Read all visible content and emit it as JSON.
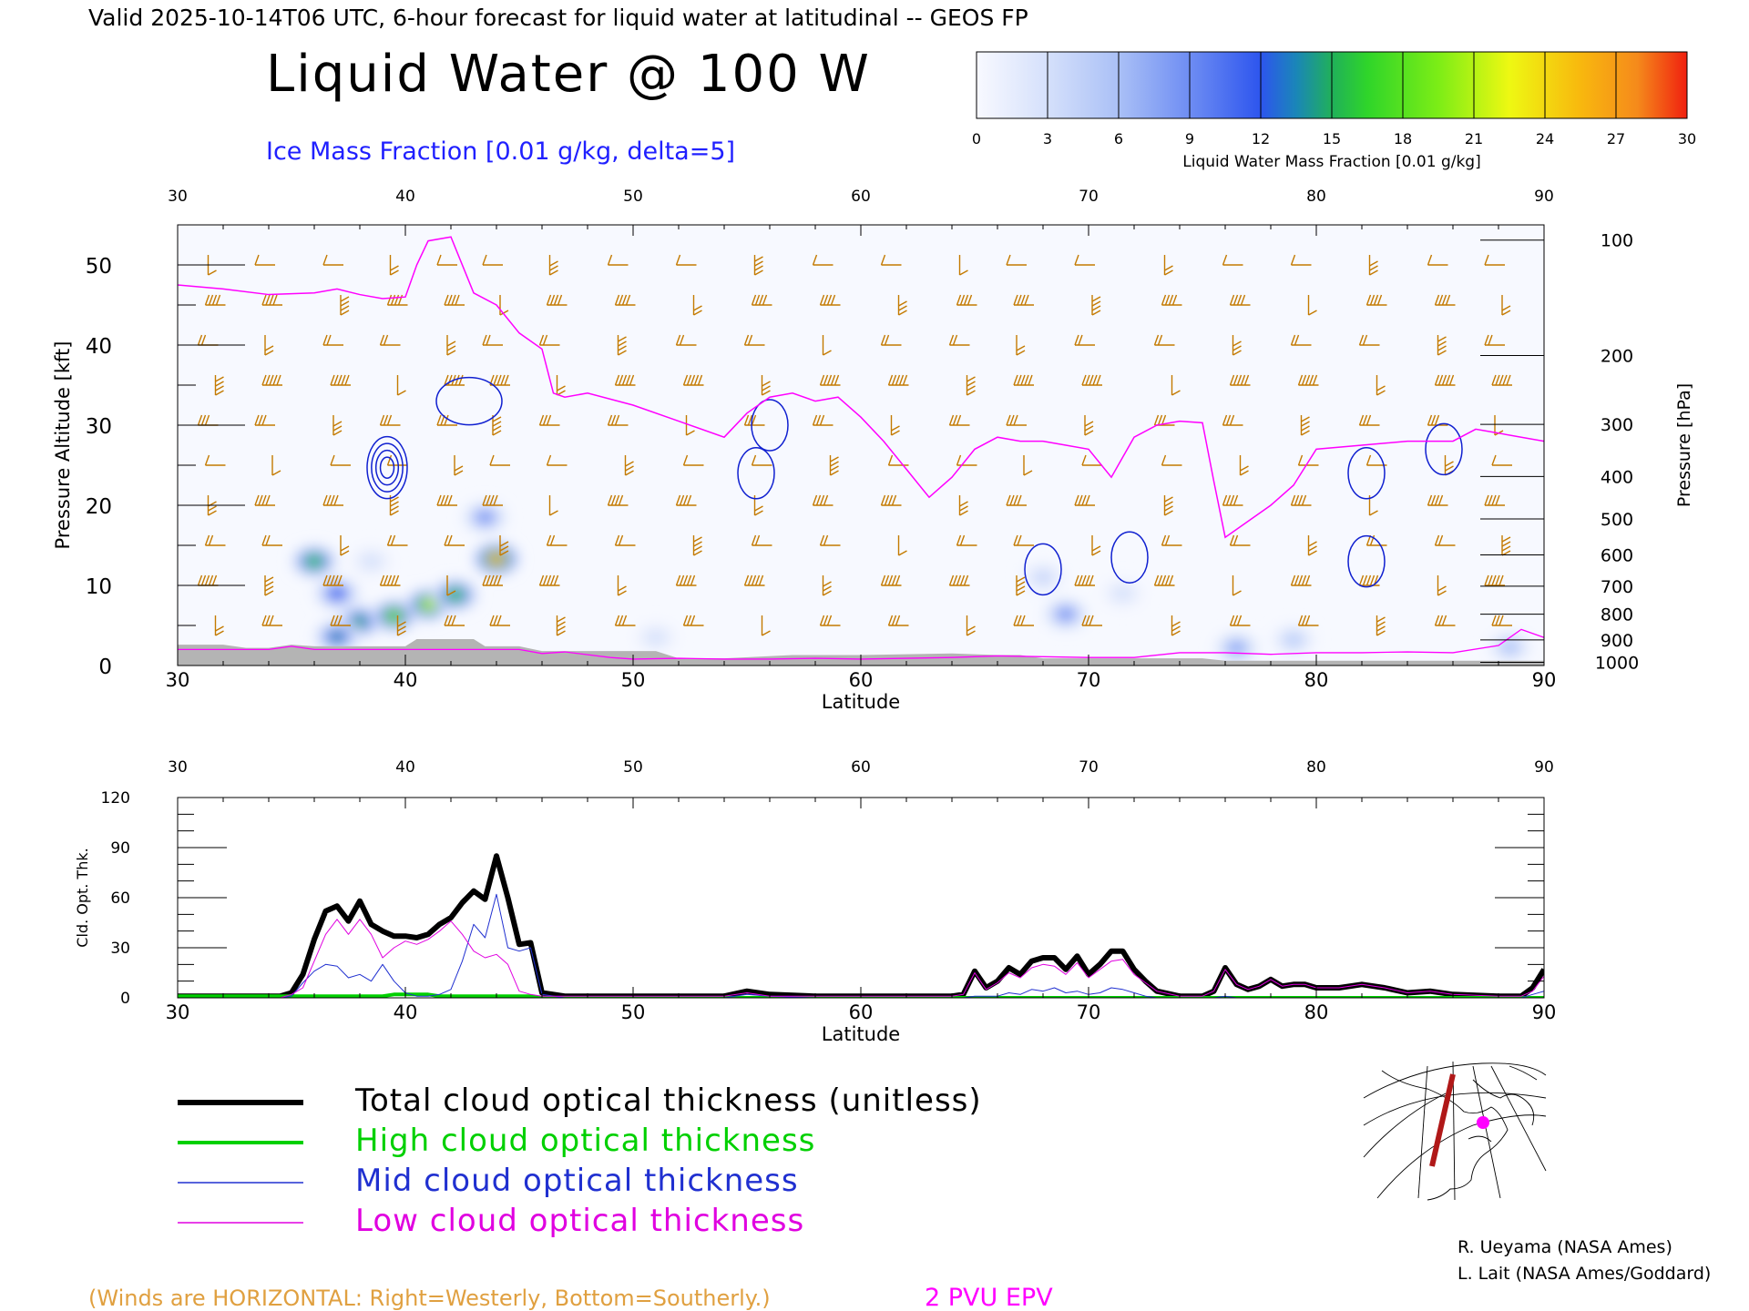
{
  "header": {
    "valid_line": "Valid 2025-10-14T06 UTC, 6-hour forecast for liquid water at latitudinal -- GEOS FP",
    "title": "Liquid Water @ 100 W",
    "ice_line": "Ice Mass Fraction [0.01 g/kg, delta=5]"
  },
  "colorbar": {
    "ticks": [
      "0",
      "3",
      "6",
      "9",
      "12",
      "15",
      "18",
      "21",
      "24",
      "27",
      "30"
    ],
    "label": "Liquid Water Mass Fraction [0.01 g/kg]",
    "colors": [
      "#f6f8ff",
      "#cfdcfb",
      "#aac2f7",
      "#8ea6f5",
      "#3f63ee",
      "#1fa0a6",
      "#2fd02a",
      "#77ea18",
      "#e8f614",
      "#f8c10e",
      "#f5911a",
      "#f02b10"
    ]
  },
  "chart_data": [
    {
      "type": "heatmap",
      "title": "Liquid Water @ 100 W",
      "xlabel": "Latitude",
      "ylabel": "Pressure Altitude [kft]",
      "y2label": "Pressure [hPa]",
      "xlim": [
        30,
        90
      ],
      "ylim": [
        0,
        55
      ],
      "x_ticks": [
        "30",
        "40",
        "50",
        "60",
        "70",
        "80",
        "90"
      ],
      "y_ticks": [
        "0",
        "10",
        "20",
        "30",
        "40",
        "50"
      ],
      "pressure_ticks": [
        "100",
        "200",
        "300",
        "400",
        "500",
        "600",
        "700",
        "800",
        "900",
        "1000"
      ],
      "pressure_tick_kft": [
        53.1,
        38.7,
        30.1,
        23.6,
        18.3,
        13.8,
        9.9,
        6.4,
        3.2,
        0.4
      ],
      "liquid_water_blobs": [
        {
          "lat": 36.0,
          "kft": 13.0,
          "value": 18
        },
        {
          "lat": 37.0,
          "kft": 9.0,
          "value": 12
        },
        {
          "lat": 38.0,
          "kft": 5.5,
          "value": 16
        },
        {
          "lat": 37.0,
          "kft": 3.6,
          "value": 14
        },
        {
          "lat": 39.5,
          "kft": 6.2,
          "value": 20
        },
        {
          "lat": 41.0,
          "kft": 7.6,
          "value": 22
        },
        {
          "lat": 42.2,
          "kft": 8.8,
          "value": 18
        },
        {
          "lat": 44.0,
          "kft": 13.3,
          "value": 28
        },
        {
          "lat": 43.5,
          "kft": 18.5,
          "value": 9
        },
        {
          "lat": 38.5,
          "kft": 13.0,
          "value": 3
        },
        {
          "lat": 69.0,
          "kft": 6.4,
          "value": 9
        },
        {
          "lat": 68.0,
          "kft": 11.0,
          "value": 4
        },
        {
          "lat": 71.5,
          "kft": 9.0,
          "value": 3
        },
        {
          "lat": 76.5,
          "kft": 2.2,
          "value": 8
        },
        {
          "lat": 79.0,
          "kft": 3.2,
          "value": 5
        },
        {
          "lat": 88.5,
          "kft": 2.3,
          "value": 6
        },
        {
          "lat": 51.0,
          "kft": 3.5,
          "value": 3
        }
      ],
      "ice_contours": [
        {
          "lat": 39.2,
          "kft": 24.7,
          "value": 5
        },
        {
          "lat": 42.8,
          "kft": 33.0,
          "value": 5
        },
        {
          "lat": 55.4,
          "kft": 24.0,
          "value": 5
        },
        {
          "lat": 56.0,
          "kft": 30.0,
          "value": 5
        },
        {
          "lat": 71.8,
          "kft": 13.5,
          "value": 5
        },
        {
          "lat": 82.2,
          "kft": 24.0,
          "value": 5
        },
        {
          "lat": 82.2,
          "kft": 13.0,
          "value": 5
        },
        {
          "lat": 85.6,
          "kft": 27.0,
          "value": 5
        },
        {
          "lat": 68.0,
          "kft": 12.0,
          "value": 5
        }
      ],
      "epv_2pvu": {
        "name": "2 PVU EPV",
        "lat": [
          30,
          32,
          34,
          36,
          37,
          38,
          39,
          40,
          40.5,
          41,
          42,
          43,
          44,
          45,
          46,
          46.5,
          47,
          48,
          50,
          52,
          54,
          55,
          56,
          57,
          58,
          59,
          60,
          61,
          62,
          63,
          64,
          65,
          66,
          67,
          68,
          69,
          70,
          71,
          72,
          73,
          74,
          75,
          75.5,
          76,
          77,
          78,
          79,
          80,
          82,
          84,
          86,
          87,
          88,
          89,
          90
        ],
        "kft": [
          47.5,
          47.0,
          46.3,
          46.5,
          47.0,
          46.3,
          45.8,
          46.0,
          50.0,
          53.0,
          53.5,
          46.5,
          45.0,
          41.5,
          39.5,
          34.0,
          33.5,
          34.0,
          32.5,
          30.5,
          28.5,
          31.5,
          33.5,
          34.0,
          33.0,
          33.5,
          31.0,
          28.0,
          24.5,
          21.0,
          23.5,
          27.0,
          28.5,
          28.0,
          28.0,
          27.5,
          27.0,
          23.5,
          28.5,
          30.0,
          30.5,
          30.3,
          23.0,
          16.0,
          18.0,
          20.0,
          22.5,
          27.0,
          27.5,
          28.0,
          28.0,
          29.5,
          29.0,
          28.5,
          28.0
        ],
        "low_lat": [
          30,
          34,
          35,
          36,
          45,
          46,
          47,
          49,
          50,
          52,
          54,
          56,
          58,
          60,
          62,
          64,
          66,
          68,
          70,
          72,
          74,
          76,
          78,
          80,
          82,
          84,
          86,
          88,
          89,
          90
        ],
        "low_kft": [
          2.0,
          2.0,
          2.4,
          2.0,
          2.0,
          1.5,
          1.7,
          1.0,
          0.8,
          0.9,
          0.8,
          0.8,
          0.9,
          0.8,
          0.9,
          1.0,
          1.2,
          1.1,
          1.0,
          1.0,
          1.6,
          1.6,
          1.4,
          1.6,
          1.6,
          1.7,
          1.6,
          2.5,
          4.5,
          3.5
        ]
      },
      "terrain": {
        "lat": [
          30,
          32,
          33,
          34,
          35,
          36,
          40,
          40.5,
          43,
          43.5,
          45,
          46,
          48,
          51,
          52,
          54,
          57,
          60,
          62,
          64,
          66,
          67,
          68,
          70,
          75,
          76,
          80,
          90
        ],
        "kft": [
          2.6,
          2.6,
          2.2,
          2.2,
          2.6,
          2.4,
          2.4,
          3.3,
          3.3,
          2.4,
          2.4,
          1.8,
          1.8,
          1.8,
          0.9,
          0.9,
          1.3,
          1.3,
          1.4,
          1.5,
          1.3,
          1.3,
          0.9,
          0.9,
          0.9,
          0.6,
          0.6,
          0.6
        ]
      },
      "wind_barbs": {
        "lats": [
          31.5,
          34,
          37,
          39.5,
          42,
          44,
          46.5,
          49.5,
          52.5,
          55.5,
          58.5,
          61.5,
          64.5,
          67,
          70,
          73.5,
          76.5,
          79.5,
          82.5,
          85.5,
          88
        ],
        "levels_kft": [
          50,
          45,
          40,
          35,
          30,
          25,
          20,
          15,
          10,
          5
        ],
        "color": "#c47a00"
      }
    },
    {
      "type": "line",
      "xlabel": "Latitude",
      "ylabel": "Cld. Opt. Thk.",
      "xlim": [
        30,
        90
      ],
      "ylim": [
        0,
        120
      ],
      "x_ticks": [
        "30",
        "40",
        "50",
        "60",
        "70",
        "80",
        "90"
      ],
      "y_ticks": [
        "0",
        "30",
        "60",
        "90",
        "120"
      ],
      "x": [
        30,
        34,
        34.5,
        35,
        35.5,
        36,
        36.5,
        37,
        37.5,
        38,
        38.5,
        39,
        39.5,
        40,
        40.5,
        41,
        41.5,
        42,
        42.5,
        43,
        43.5,
        44,
        44.5,
        45,
        45.5,
        46,
        47,
        50,
        54,
        55,
        56,
        58,
        60,
        62,
        64,
        64.5,
        65,
        65.5,
        66,
        66.5,
        67,
        67.5,
        68,
        68.5,
        69,
        69.5,
        70,
        70.5,
        71,
        71.5,
        72,
        72.5,
        73,
        74,
        75,
        75.5,
        76,
        76.5,
        77,
        77.5,
        78,
        78.5,
        79,
        79.5,
        80,
        81,
        82,
        83,
        84,
        85,
        86,
        88,
        89,
        89.5,
        90
      ],
      "series": [
        {
          "name": "Total cloud optical thickness (unitless)",
          "color": "#000000",
          "width": 6,
          "values": [
            1,
            1,
            1,
            3,
            14,
            35,
            52,
            55,
            46,
            58,
            44,
            40,
            37,
            37,
            36,
            38,
            44,
            48,
            57,
            64,
            59,
            85,
            60,
            32,
            33,
            3,
            1,
            1,
            1,
            4,
            2,
            1,
            1,
            1,
            1,
            2,
            16,
            6,
            10,
            18,
            14,
            22,
            24,
            24,
            17,
            25,
            14,
            20,
            28,
            28,
            17,
            10,
            4,
            1,
            1,
            4,
            18,
            8,
            5,
            7,
            11,
            7,
            8,
            8,
            6,
            6,
            8,
            6,
            3,
            4,
            2,
            1,
            1,
            6,
            17
          ]
        },
        {
          "name": "High cloud optical thickness",
          "color": "#00d000",
          "width": 4,
          "values": [
            1,
            1,
            1,
            1,
            1,
            1,
            1,
            1,
            1,
            1,
            1,
            1,
            2,
            2,
            2,
            2,
            1,
            1,
            1,
            1,
            1,
            1,
            1,
            1,
            1,
            0,
            0,
            0,
            0,
            0,
            0,
            0,
            0,
            0,
            0,
            0,
            0,
            0,
            0,
            0,
            0,
            0,
            0,
            0,
            0,
            0,
            0,
            0,
            0,
            0,
            0,
            0,
            0,
            0,
            0,
            0,
            0,
            0,
            0,
            0,
            0,
            0,
            0,
            0,
            0,
            0,
            0,
            0,
            0,
            0,
            0,
            0,
            0,
            0,
            0
          ]
        },
        {
          "name": "Mid cloud optical thickness",
          "color": "#2030d0",
          "width": 1,
          "values": [
            0,
            0,
            0,
            1,
            9,
            16,
            20,
            19,
            12,
            14,
            10,
            20,
            10,
            3,
            1,
            1,
            2,
            5,
            22,
            44,
            36,
            62,
            30,
            28,
            30,
            2,
            0,
            0,
            0,
            2,
            1,
            0,
            0,
            0,
            0,
            0,
            1,
            1,
            1,
            3,
            2,
            5,
            4,
            6,
            3,
            4,
            2,
            3,
            6,
            5,
            3,
            1,
            0,
            0,
            0,
            0,
            1,
            0,
            0,
            0,
            0,
            0,
            0,
            0,
            0,
            0,
            0,
            0,
            0,
            0,
            0,
            0,
            0,
            2,
            4
          ]
        },
        {
          "name": "Low cloud optical thickness",
          "color": "#e000e0",
          "width": 1,
          "values": [
            0,
            0,
            0,
            2,
            6,
            22,
            38,
            47,
            38,
            47,
            38,
            24,
            30,
            34,
            32,
            35,
            40,
            46,
            38,
            28,
            24,
            26,
            20,
            4,
            2,
            1,
            1,
            1,
            1,
            3,
            1,
            1,
            1,
            1,
            1,
            2,
            15,
            5,
            9,
            15,
            12,
            18,
            20,
            19,
            14,
            21,
            12,
            17,
            22,
            23,
            14,
            9,
            4,
            1,
            1,
            4,
            17,
            8,
            5,
            7,
            11,
            7,
            8,
            8,
            6,
            6,
            8,
            6,
            3,
            4,
            2,
            1,
            1,
            4,
            13
          ]
        }
      ]
    }
  ],
  "legend": [
    {
      "label": "Total cloud optical thickness (unitless)",
      "color": "#000000",
      "width": 6
    },
    {
      "label": "High cloud optical thickness",
      "color": "#00d000",
      "width": 4
    },
    {
      "label": "Mid cloud optical thickness",
      "color": "#2030d0",
      "width": 1.5
    },
    {
      "label": "Low cloud optical thickness",
      "color": "#e000e0",
      "width": 1.5
    }
  ],
  "footer": {
    "winds_note": "(Winds are HORIZONTAL: Right=Westerly, Bottom=Southerly.)",
    "epv_label": "2 PVU EPV",
    "credit_1": "R. Ueyama (NASA Ames)",
    "credit_2": "L. Lait (NASA Ames/Goddard)"
  }
}
